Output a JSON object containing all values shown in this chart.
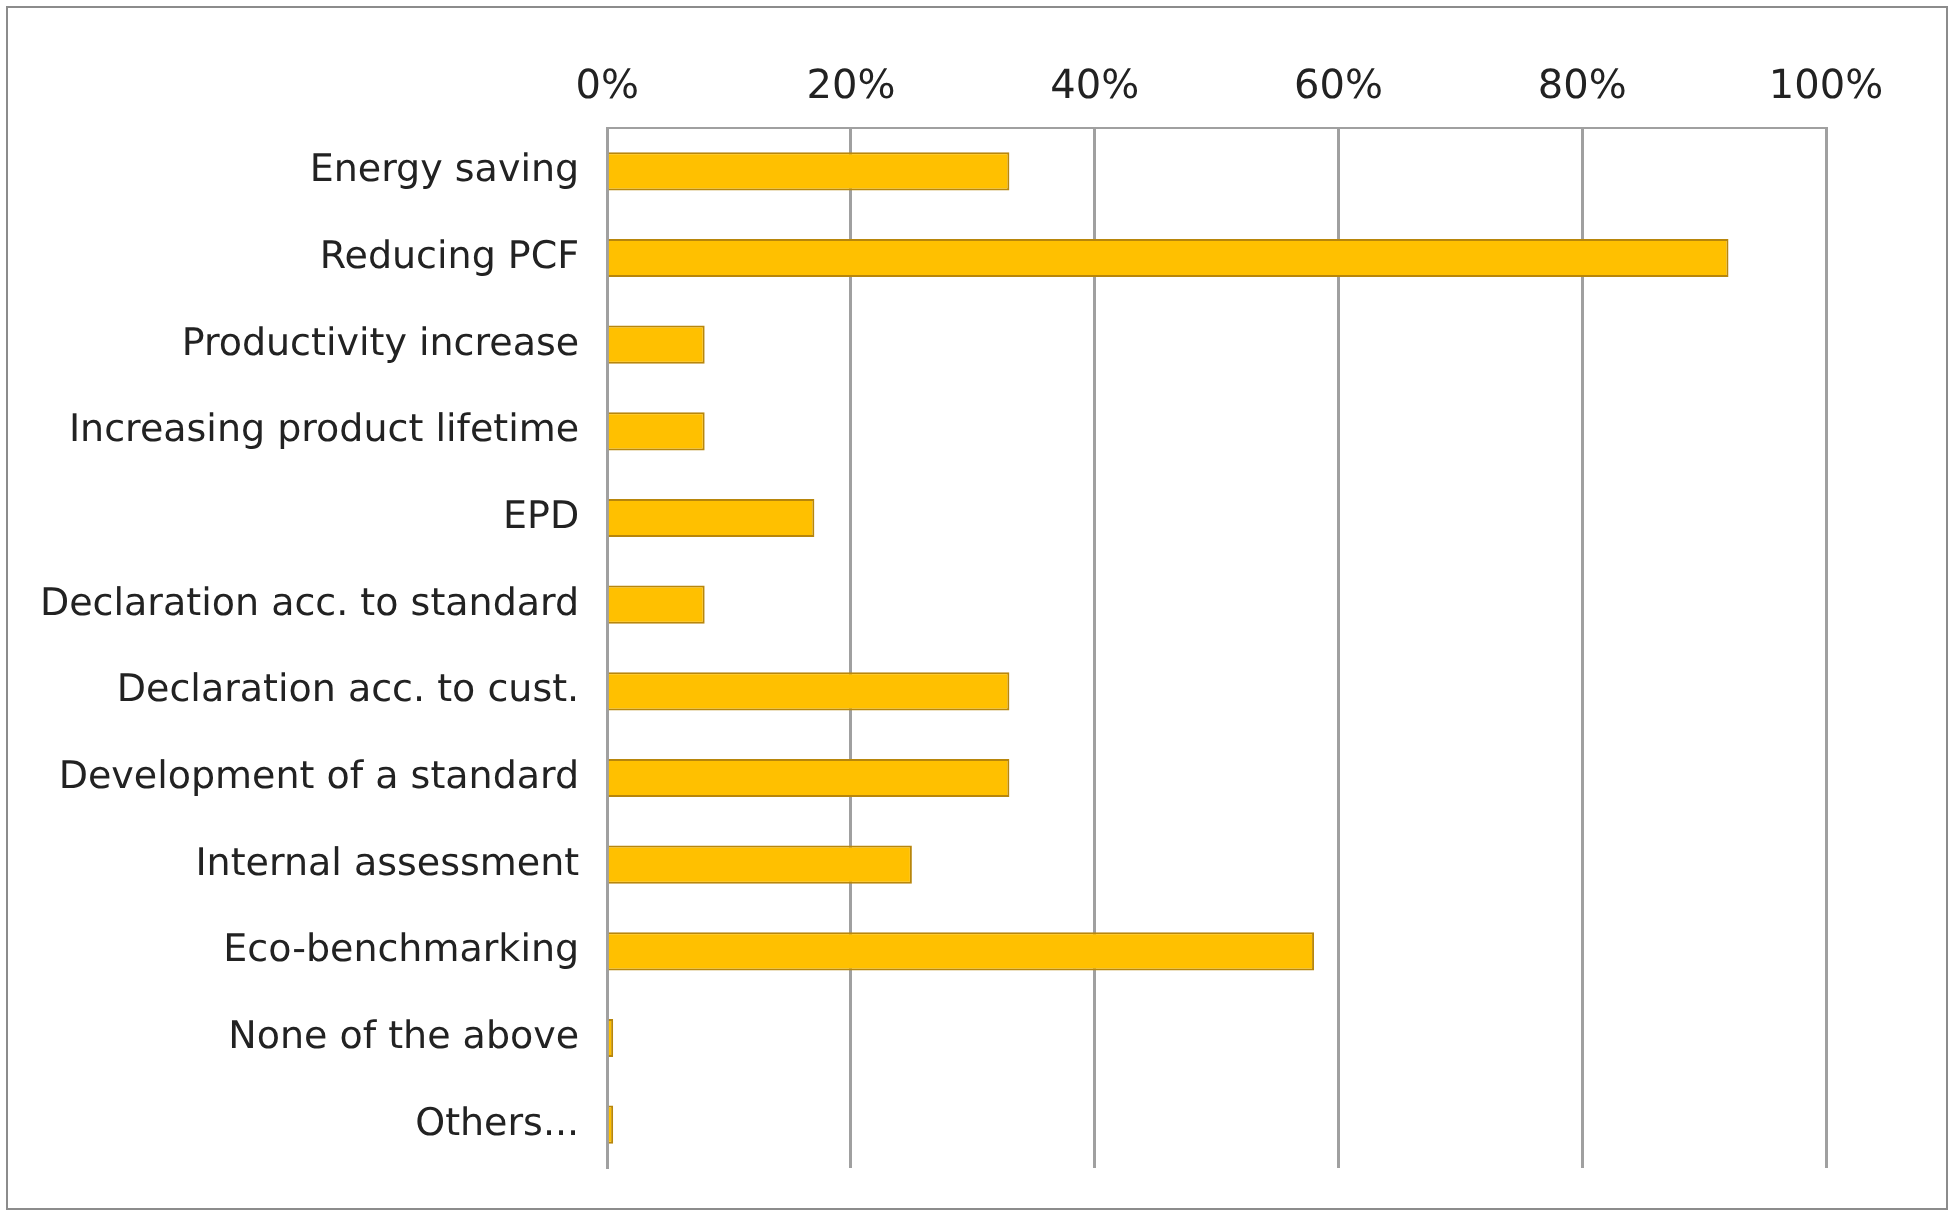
{
  "chart_data": {
    "type": "bar",
    "orientation": "horizontal",
    "categories": [
      "Energy saving",
      "Reducing PCF",
      "Productivity increase",
      "Increasing product lifetime",
      "EPD",
      "Declaration acc. to standard",
      "Declaration acc. to cust.",
      "Development of a standard",
      "Internal assessment",
      "Eco-benchmarking",
      "None of the above",
      "Others..."
    ],
    "values": [
      33,
      92,
      8,
      8,
      17,
      8,
      33,
      33,
      25,
      58,
      0,
      0
    ],
    "color": "#ffc000",
    "xlim": [
      0,
      100
    ],
    "xticks": [
      {
        "value": 0,
        "label": "0%"
      },
      {
        "value": 20,
        "label": "20%"
      },
      {
        "value": 40,
        "label": "40%"
      },
      {
        "value": 60,
        "label": "60%"
      },
      {
        "value": 80,
        "label": "80%"
      },
      {
        "value": 100,
        "label": "100%"
      }
    ],
    "grid": "x",
    "legend": false
  }
}
